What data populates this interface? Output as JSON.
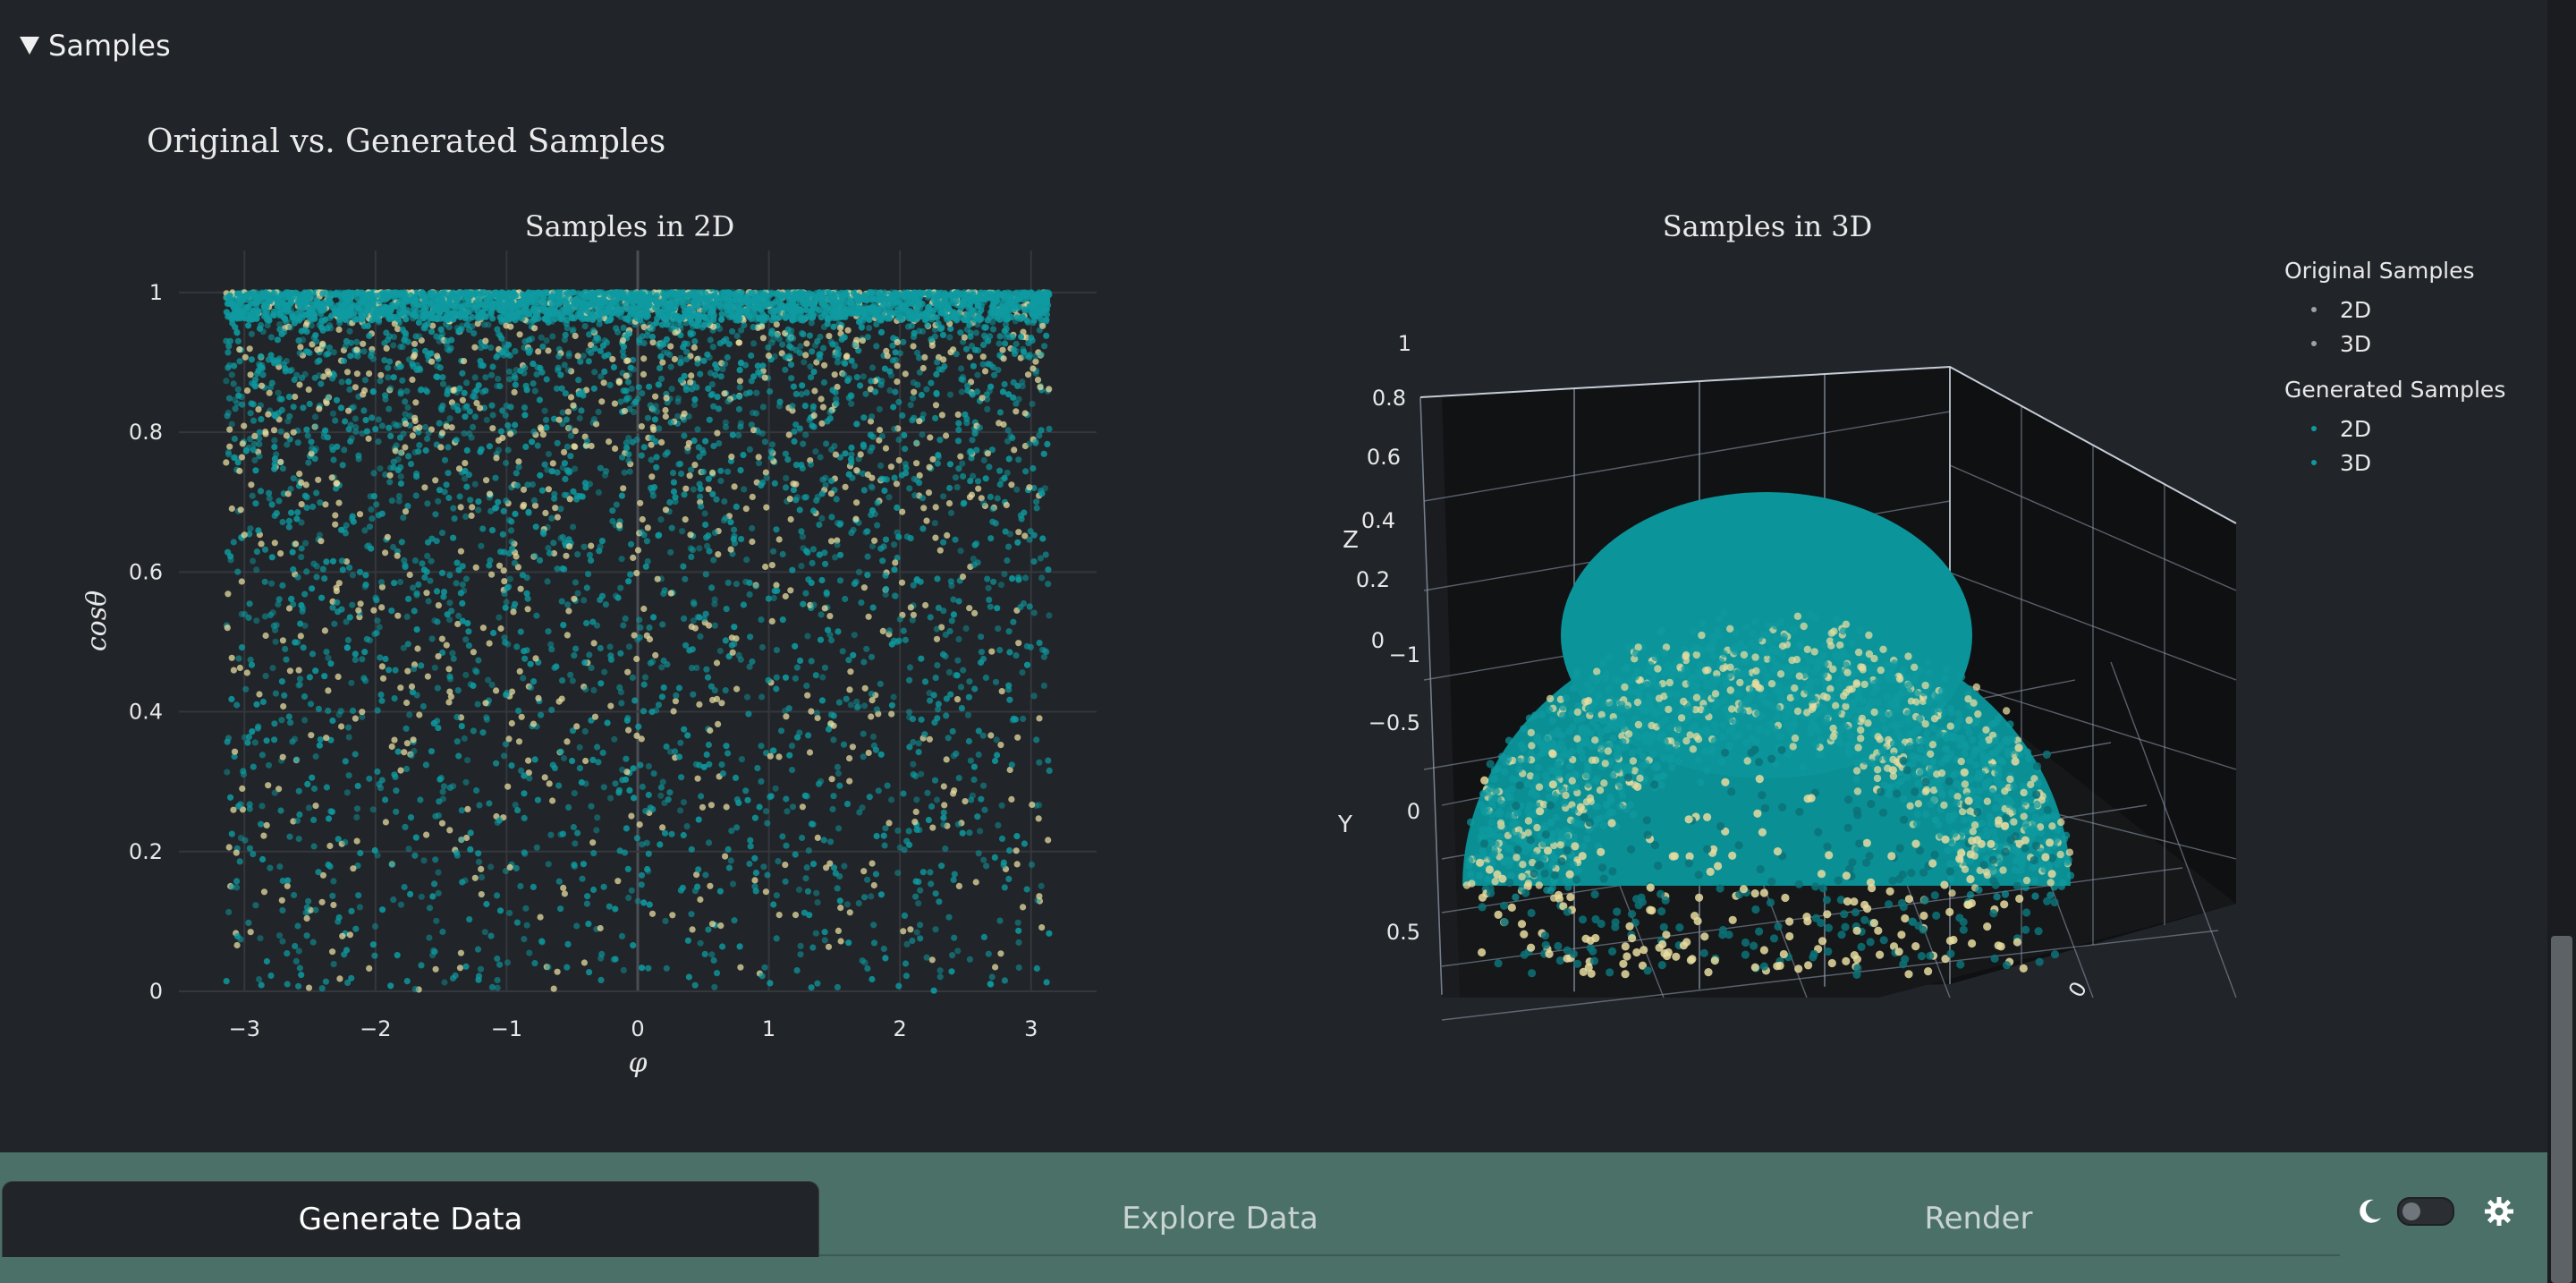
{
  "section": {
    "label": "Samples"
  },
  "figure": {
    "title": "Original vs. Generated Samples"
  },
  "chart_data": [
    {
      "type": "scatter",
      "title": "Samples in 2D",
      "xlabel": "φ",
      "ylabel": "cosθ",
      "xlim": [
        -3.5,
        3.5
      ],
      "ylim": [
        0,
        1.06
      ],
      "xticks": [
        "−3",
        "−2",
        "−1",
        "0",
        "1",
        "2",
        "3"
      ],
      "xtick_values": [
        -3,
        -2,
        -1,
        0,
        1,
        2,
        3
      ],
      "yticks": [
        "0",
        "0.2",
        "0.4",
        "0.6",
        "0.8",
        "1"
      ],
      "ytick_values": [
        0,
        0.2,
        0.4,
        0.6,
        0.8,
        1
      ],
      "x_range_of_points": [
        -3.14,
        3.14
      ],
      "y_range_of_points": [
        0,
        1
      ],
      "density_note": "points dense near cosθ = 1, sparse toward 0",
      "series": [
        {
          "name": "Original Samples 2D",
          "color": "#e6dca0"
        },
        {
          "name": "Generated Samples 2D",
          "color": "#0e9aa0"
        }
      ],
      "grid": true
    },
    {
      "type": "scatter",
      "title": "Samples in 3D",
      "axes": {
        "x": "",
        "y": "Y",
        "z": "Z"
      },
      "zticks": [
        "0",
        "0.2",
        "0.4",
        "0.6",
        "0.8",
        "1"
      ],
      "yticks": [
        "−1",
        "−0.5",
        "0",
        "0.5"
      ],
      "xticks": [
        "0"
      ],
      "shape": "hemisphere z ≥ 0",
      "series": [
        {
          "name": "Original Samples 3D",
          "color": "#e6dca0"
        },
        {
          "name": "Generated Samples 3D",
          "color": "#0e9aa0"
        }
      ],
      "grid": true
    }
  ],
  "legend": {
    "groups": [
      {
        "title": "Original Samples",
        "items": [
          {
            "label": "2D",
            "color": "#9aa3a6"
          },
          {
            "label": "3D",
            "color": "#9aa3a6"
          }
        ]
      },
      {
        "title": "Generated Samples",
        "items": [
          {
            "label": "2D",
            "color": "#0e9aa0"
          },
          {
            "label": "3D",
            "color": "#0e9aa0"
          }
        ]
      }
    ]
  },
  "tabs": [
    {
      "label": "Generate Data",
      "active": true
    },
    {
      "label": "Explore Data",
      "active": false
    },
    {
      "label": "Render",
      "active": false
    }
  ],
  "theme": {
    "moon_icon": "moon-icon",
    "gear_icon": "gear-icon",
    "dark_mode": false
  },
  "colors": {
    "background": "#212428",
    "plot_bg": "#212428",
    "bar_bg": "#4a7068",
    "orig": "#e6dca0",
    "gen": "#0e9aa0"
  }
}
